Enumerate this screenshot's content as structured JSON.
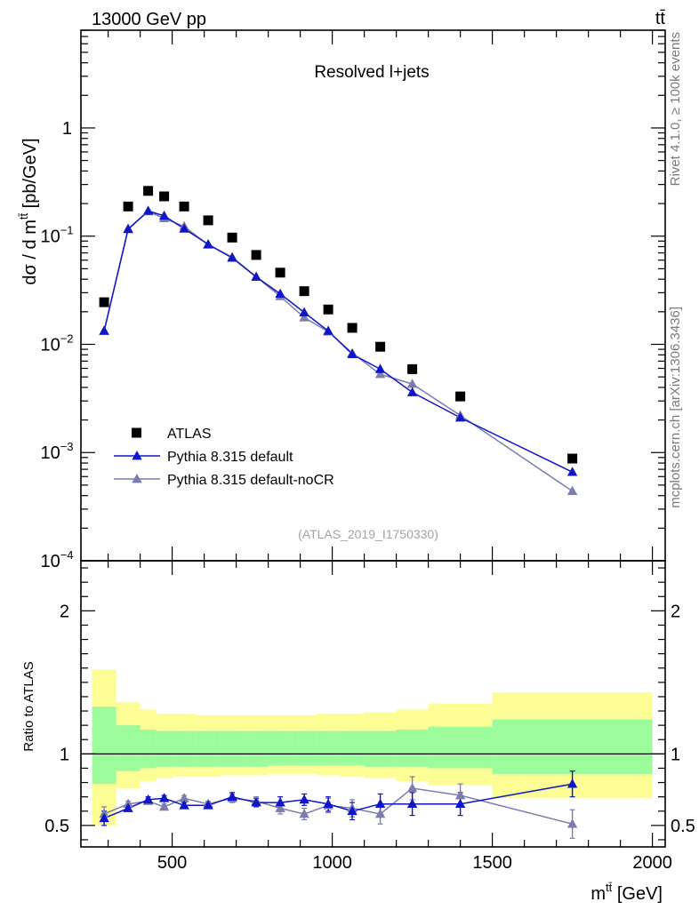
{
  "header": {
    "energy_label": "13000 GeV pp",
    "process_label": "tt̄"
  },
  "side": {
    "rivet_label": "Rivet 4.1.0, ≥ 100k events",
    "mcplots_label": "mcplots.cern.ch [arXiv:1306.3436]"
  },
  "chart_data": [
    {
      "type": "scatter",
      "title": "Resolved l+jets",
      "analysis_id": "(ATLAS_2019_I1750330)",
      "xlabel": "m^{tt̄} [GeV]",
      "ylabel": "dσ / d m^{tt̄} [pb/GeV]",
      "yscale": "log",
      "xlim": [
        215,
        2040
      ],
      "ylim": [
        0.0001,
        8
      ],
      "y_ticks": [
        0.0001,
        0.001,
        0.01,
        0.1,
        1
      ],
      "y_tick_labels": [
        [
          "10",
          "−4"
        ],
        [
          "10",
          "−3"
        ],
        [
          "10",
          "−2"
        ],
        [
          "10",
          "−1"
        ],
        [
          "1",
          ""
        ]
      ],
      "legend_position": "lower-left",
      "bins": [
        250,
        325,
        400,
        450,
        500,
        575,
        650,
        725,
        800,
        875,
        950,
        1025,
        1100,
        1200,
        1300,
        1500,
        2000
      ],
      "series": [
        {
          "name": "ATLAS",
          "marker": "square",
          "color": "#000000",
          "x": [
            287.5,
            362.5,
            425,
            475,
            537.5,
            612.5,
            687.5,
            762.5,
            837.5,
            912.5,
            987.5,
            1062.5,
            1150,
            1250,
            1400,
            1750
          ],
          "values": [
            0.0245,
            0.188,
            0.262,
            0.233,
            0.188,
            0.14,
            0.097,
            0.067,
            0.046,
            0.031,
            0.021,
            0.0142,
            0.0095,
            0.0059,
            0.0033,
            0.00088
          ]
        },
        {
          "name": "Pythia 8.315 default",
          "marker": "triangle",
          "color": "#0f16c8",
          "x": [
            287.5,
            362.5,
            425,
            475,
            537.5,
            612.5,
            687.5,
            762.5,
            837.5,
            912.5,
            987.5,
            1062.5,
            1150,
            1250,
            1400,
            1750
          ],
          "values": [
            0.0133,
            0.116,
            0.171,
            0.154,
            0.117,
            0.084,
            0.063,
            0.042,
            0.0293,
            0.0197,
            0.0133,
            0.0081,
            0.0059,
            0.0036,
            0.0021,
            0.00066
          ]
        },
        {
          "name": "Pythia 8.315 default-noCR",
          "marker": "triangle",
          "color": "#7c7cae",
          "x": [
            287.5,
            362.5,
            425,
            475,
            537.5,
            612.5,
            687.5,
            762.5,
            837.5,
            912.5,
            987.5,
            1062.5,
            1150,
            1250,
            1400,
            1750
          ],
          "values": [
            0.0133,
            0.117,
            0.169,
            0.146,
            0.123,
            0.083,
            0.064,
            0.042,
            0.0278,
            0.0177,
            0.0131,
            0.0083,
            0.0053,
            0.0043,
            0.0022,
            0.00044
          ]
        }
      ]
    },
    {
      "type": "scatter",
      "title": "",
      "xlabel": "m^{tt̄} [GeV]",
      "ylabel": "Ratio to ATLAS",
      "xlim": [
        215,
        2040
      ],
      "ylim": [
        0.35,
        2.35
      ],
      "x_ticks": [
        500,
        1000,
        1500,
        2000
      ],
      "x_tick_labels": [
        "500",
        "1000",
        "1500",
        "2000"
      ],
      "y_ticks": [
        0.5,
        1,
        2
      ],
      "y_tick_labels": [
        "0.5",
        "1",
        "2"
      ],
      "bins": [
        250,
        325,
        400,
        450,
        500,
        575,
        650,
        725,
        800,
        875,
        950,
        1025,
        1100,
        1200,
        1300,
        1500,
        2000
      ],
      "band_inner": {
        "color": "#9cfc9c",
        "low": [
          0.79,
          0.88,
          0.9,
          0.91,
          0.91,
          0.91,
          0.91,
          0.91,
          0.92,
          0.92,
          0.92,
          0.92,
          0.91,
          0.91,
          0.9,
          0.86
        ],
        "high": [
          1.33,
          1.2,
          1.17,
          1.16,
          1.16,
          1.16,
          1.16,
          1.16,
          1.16,
          1.16,
          1.16,
          1.16,
          1.16,
          1.17,
          1.19,
          1.24
        ]
      },
      "band_outer": {
        "color": "#fdfd96",
        "low": [
          0.5,
          0.76,
          0.81,
          0.83,
          0.84,
          0.84,
          0.85,
          0.85,
          0.86,
          0.86,
          0.85,
          0.84,
          0.83,
          0.81,
          0.78,
          0.69
        ],
        "high": [
          1.59,
          1.36,
          1.31,
          1.28,
          1.28,
          1.27,
          1.27,
          1.27,
          1.27,
          1.27,
          1.28,
          1.28,
          1.29,
          1.31,
          1.35,
          1.43
        ]
      },
      "series": [
        {
          "name": "Pythia 8.315 default",
          "color": "#0f16c8",
          "x": [
            287.5,
            362.5,
            425,
            475,
            537.5,
            612.5,
            687.5,
            762.5,
            837.5,
            912.5,
            987.5,
            1062.5,
            1150,
            1250,
            1400,
            1750
          ],
          "values": [
            0.55,
            0.62,
            0.68,
            0.69,
            0.64,
            0.64,
            0.7,
            0.66,
            0.66,
            0.68,
            0.65,
            0.6,
            0.65,
            0.65,
            0.65,
            0.79
          ],
          "errors": [
            0.05,
            0.02,
            0.02,
            0.02,
            0.02,
            0.02,
            0.03,
            0.03,
            0.04,
            0.04,
            0.05,
            0.06,
            0.07,
            0.08,
            0.08,
            0.09
          ]
        },
        {
          "name": "Pythia 8.315 default-noCR",
          "color": "#7c7cae",
          "x": [
            287.5,
            362.5,
            425,
            475,
            537.5,
            612.5,
            687.5,
            762.5,
            837.5,
            912.5,
            987.5,
            1062.5,
            1150,
            1250,
            1400,
            1750
          ],
          "values": [
            0.58,
            0.65,
            0.67,
            0.63,
            0.69,
            0.65,
            0.69,
            0.67,
            0.62,
            0.58,
            0.64,
            0.62,
            0.58,
            0.76,
            0.71,
            0.51
          ],
          "errors": [
            0.05,
            0.02,
            0.02,
            0.02,
            0.02,
            0.02,
            0.03,
            0.03,
            0.04,
            0.04,
            0.05,
            0.06,
            0.07,
            0.08,
            0.08,
            0.1
          ]
        }
      ]
    }
  ]
}
